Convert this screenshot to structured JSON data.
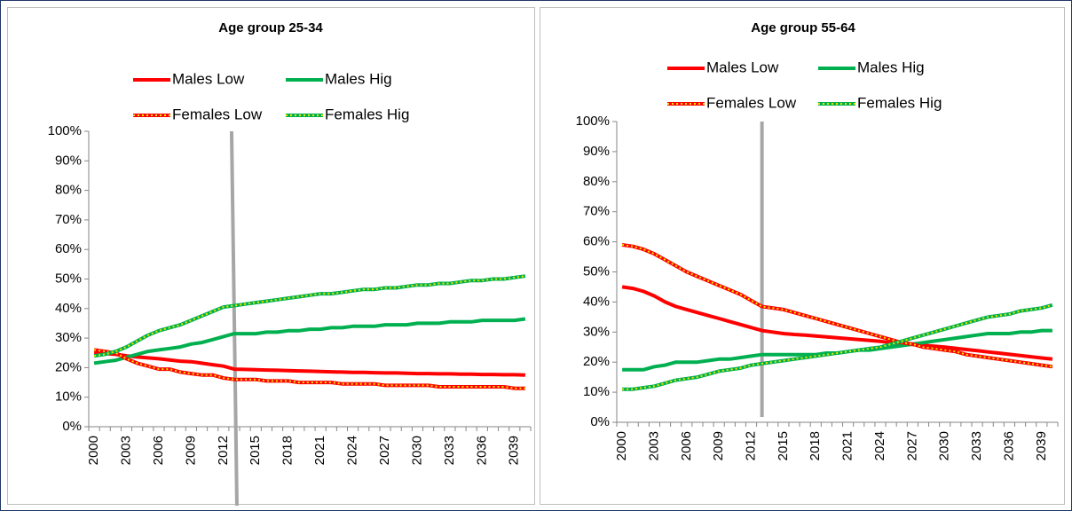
{
  "chart_data": [
    {
      "type": "line",
      "title": "Age group 25-34",
      "categories": [
        "2000",
        null,
        null,
        "2003",
        null,
        null,
        "2006",
        null,
        null,
        "2009",
        null,
        null,
        "2012",
        null,
        null,
        "2015",
        null,
        null,
        "2018",
        null,
        null,
        "2021",
        null,
        null,
        "2024",
        null,
        null,
        "2027",
        null,
        null,
        "2030",
        null,
        null,
        "2033",
        null,
        null,
        "2036",
        null,
        null,
        "2039",
        null
      ],
      "ylim": [
        0,
        100
      ],
      "yticks": [
        {
          "value": 0,
          "label": "0%"
        },
        {
          "value": 10,
          "label": "10%"
        },
        {
          "value": 20,
          "label": "20%"
        },
        {
          "value": 30,
          "label": "30%"
        },
        {
          "value": 40,
          "label": "40%"
        },
        {
          "value": 50,
          "label": "50%"
        },
        {
          "value": 60,
          "label": "60%"
        },
        {
          "value": 70,
          "label": "70%"
        },
        {
          "value": 80,
          "label": "80%"
        },
        {
          "value": 90,
          "label": "90%"
        },
        {
          "value": 100,
          "label": "100%"
        }
      ],
      "series": [
        {
          "name": "Males Low",
          "color": "#ff0000",
          "values": [
            25,
            24.8,
            24.5,
            24,
            23.6,
            23.3,
            23,
            22.6,
            22.2,
            22,
            21.5,
            21,
            20.5,
            19.5,
            19.4,
            19.3,
            19.2,
            19.1,
            19,
            18.9,
            18.8,
            18.7,
            18.6,
            18.5,
            18.4,
            18.4,
            18.3,
            18.2,
            18.2,
            18.1,
            18,
            18,
            17.9,
            17.9,
            17.8,
            17.8,
            17.7,
            17.7,
            17.6,
            17.6,
            17.5
          ]
        },
        {
          "name": "Males Hig",
          "color": "#00b050",
          "values": [
            21.5,
            22,
            22.5,
            23.5,
            24.5,
            25.5,
            26,
            26.5,
            27,
            28,
            28.5,
            29.5,
            30.5,
            31.5,
            31.5,
            31.5,
            32,
            32,
            32.5,
            32.5,
            33,
            33,
            33.5,
            33.5,
            34,
            34,
            34,
            34.5,
            34.5,
            34.5,
            35,
            35,
            35,
            35.5,
            35.5,
            35.5,
            36,
            36,
            36,
            36,
            36.5
          ]
        },
        {
          "name": "Females Low",
          "color": "#ff0000",
          "dash_color": "#e6e600",
          "values": [
            26,
            25.5,
            25,
            23,
            21.5,
            20.5,
            19.5,
            19.5,
            18.5,
            18,
            17.5,
            17.5,
            16.5,
            16,
            16,
            16,
            15.5,
            15.5,
            15.5,
            15,
            15,
            15,
            15,
            14.5,
            14.5,
            14.5,
            14.5,
            14,
            14,
            14,
            14,
            14,
            13.5,
            13.5,
            13.5,
            13.5,
            13.5,
            13.5,
            13.5,
            13,
            13
          ]
        },
        {
          "name": "Females Hig",
          "color": "#00b050",
          "dash_color": "#e6e600",
          "values": [
            24,
            24.5,
            25.5,
            27,
            29,
            31,
            32.5,
            33.5,
            34.5,
            36,
            37.5,
            39,
            40.5,
            41,
            41.5,
            42,
            42.5,
            43,
            43.5,
            44,
            44.5,
            45,
            45,
            45.5,
            46,
            46.5,
            46.5,
            47,
            47,
            47.5,
            48,
            48,
            48.5,
            48.5,
            49,
            49.5,
            49.5,
            50,
            50,
            50.5,
            51
          ]
        }
      ]
    },
    {
      "type": "line",
      "title": "Age group 55-64",
      "categories": [
        "2000",
        null,
        null,
        "2003",
        null,
        null,
        "2006",
        null,
        null,
        "2009",
        null,
        null,
        "2012",
        null,
        null,
        "2015",
        null,
        null,
        "2018",
        null,
        null,
        "2021",
        null,
        null,
        "2024",
        null,
        null,
        "2027",
        null,
        null,
        "2030",
        null,
        null,
        "2033",
        null,
        null,
        "2036",
        null,
        null,
        "2039",
        null
      ],
      "ylim": [
        0,
        100
      ],
      "yticks": [
        {
          "value": 0,
          "label": "0%"
        },
        {
          "value": 10,
          "label": "10%"
        },
        {
          "value": 20,
          "label": "20%"
        },
        {
          "value": 30,
          "label": "30%"
        },
        {
          "value": 40,
          "label": "40%"
        },
        {
          "value": 50,
          "label": "50%"
        },
        {
          "value": 60,
          "label": "60%"
        },
        {
          "value": 70,
          "label": "70%"
        },
        {
          "value": 80,
          "label": "80%"
        },
        {
          "value": 90,
          "label": "90%"
        },
        {
          "value": 100,
          "label": "100%"
        }
      ],
      "series": [
        {
          "name": "Males Low",
          "color": "#ff0000",
          "values": [
            45,
            44.5,
            43.5,
            42,
            40,
            38.5,
            37.5,
            36.5,
            35.5,
            34.5,
            33.5,
            32.5,
            31.5,
            30.5,
            30,
            29.5,
            29.2,
            29,
            28.7,
            28.4,
            28.1,
            27.8,
            27.5,
            27.2,
            26.9,
            26.5,
            26.2,
            25.9,
            25.6,
            25.3,
            25,
            24.6,
            24.2,
            23.8,
            23.4,
            23,
            22.6,
            22.2,
            21.8,
            21.4,
            21
          ]
        },
        {
          "name": "Males Hig",
          "color": "#00b050",
          "values": [
            17.5,
            17.5,
            17.5,
            18.5,
            19,
            20,
            20,
            20,
            20.5,
            21,
            21,
            21.5,
            22,
            22.5,
            22.5,
            22.5,
            22.5,
            22.5,
            22.5,
            23,
            23,
            23.5,
            24,
            24,
            24.5,
            25,
            25.5,
            26,
            26.5,
            27,
            27.5,
            28,
            28.5,
            29,
            29.5,
            29.5,
            29.5,
            30,
            30,
            30.5,
            30.5
          ]
        },
        {
          "name": "Females Low",
          "color": "#ff0000",
          "dash_color": "#e6e600",
          "values": [
            59,
            58.5,
            57.5,
            56,
            54,
            52,
            50,
            48.5,
            47,
            45.5,
            44,
            42.5,
            40.5,
            38.5,
            38,
            37.5,
            36.5,
            35.5,
            34.5,
            33.5,
            32.5,
            31.5,
            30.5,
            29.5,
            28.5,
            27.5,
            26.5,
            26,
            25,
            24.5,
            24,
            23.5,
            22.5,
            22,
            21.5,
            21,
            20.5,
            20,
            19.5,
            19,
            18.5
          ]
        },
        {
          "name": "Females Hig",
          "color": "#00b050",
          "dash_color": "#e6e600",
          "values": [
            11,
            11,
            11.5,
            12,
            13,
            14,
            14.5,
            15,
            16,
            17,
            17.5,
            18,
            19,
            19.5,
            20,
            20.5,
            21,
            21.5,
            22,
            22.5,
            23,
            23.5,
            24,
            24.5,
            25,
            26,
            27,
            28,
            29,
            30,
            31,
            32,
            33,
            34,
            35,
            35.5,
            36,
            37,
            37.5,
            38,
            39
          ]
        }
      ]
    }
  ]
}
